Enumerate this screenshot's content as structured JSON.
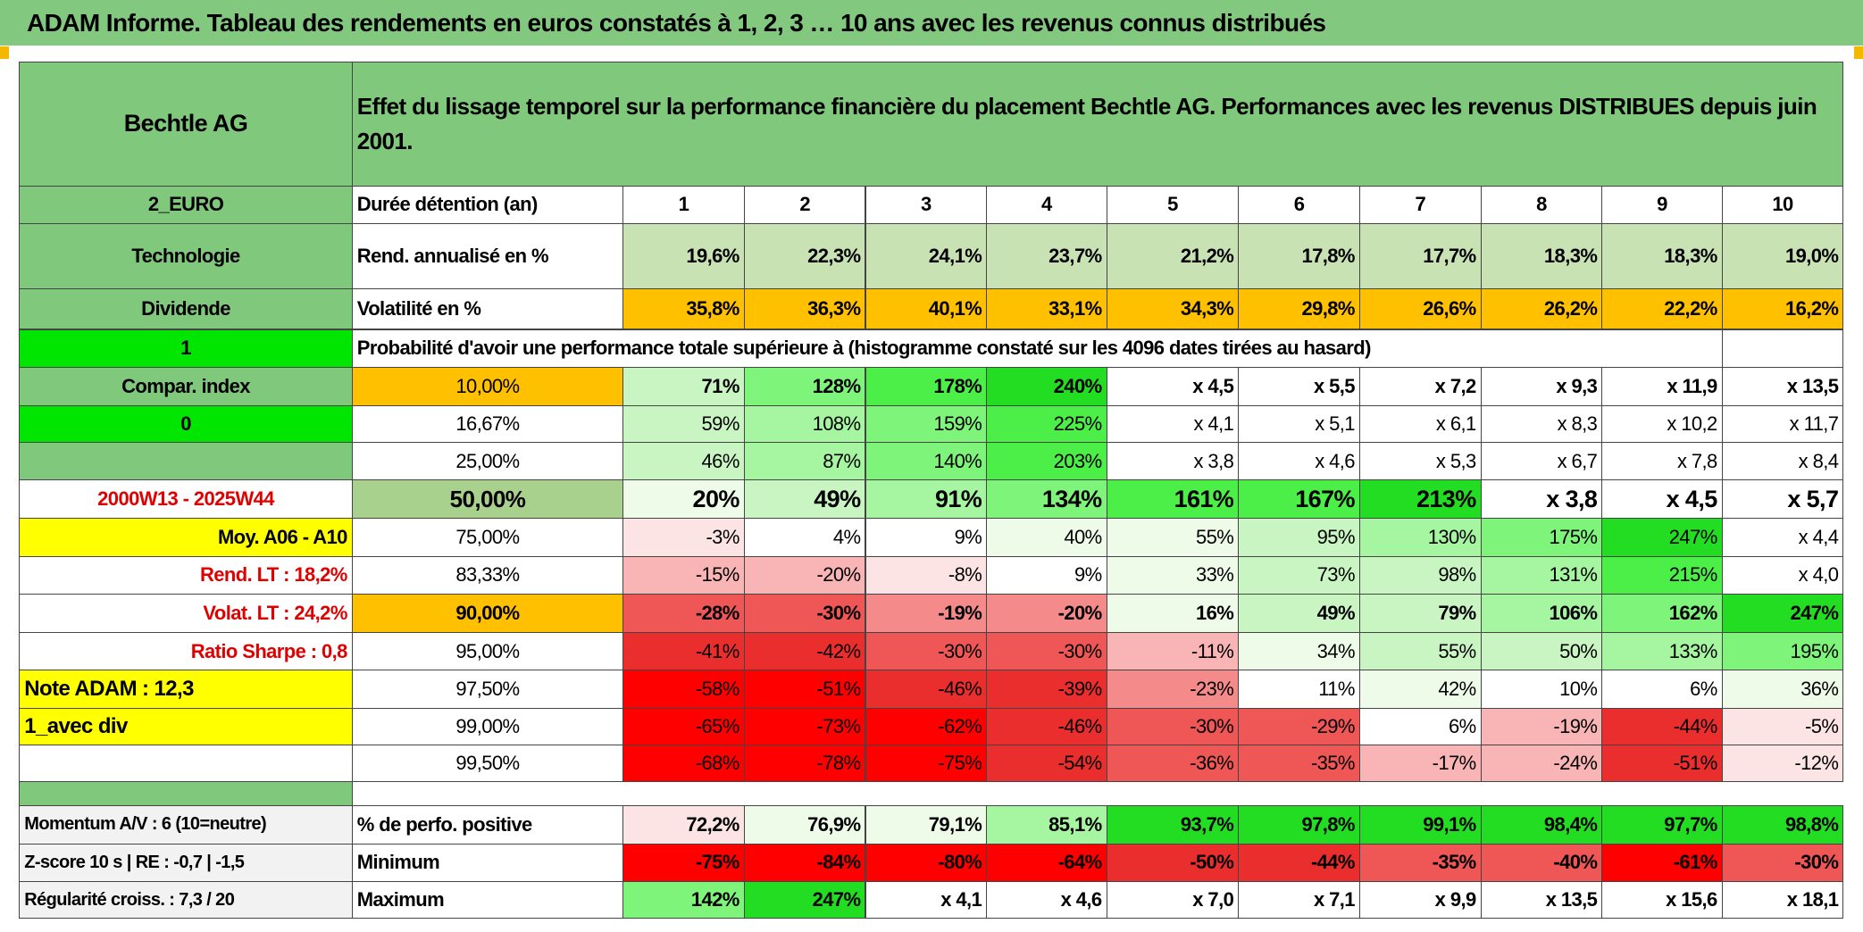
{
  "title": "ADAM Informe. Tableau des rendements en euros constatés à 1, 2, 3 … 10 ans avec les revenus connus distribués",
  "header": {
    "name": "Bechtle AG",
    "description": "Effet du lissage temporel sur la performance financière du placement Bechtle AG. Performances avec les revenus DISTRIBUES depuis juin 2001."
  },
  "rows": [
    {
      "label": "2_EURO",
      "name": "Durée détention (an)",
      "values": [
        1,
        2,
        3,
        4,
        5,
        6,
        7,
        8,
        9,
        10
      ]
    },
    {
      "label": "Technologie",
      "name": "Rend. annualisé en %",
      "values": [
        "19,6%",
        "22,3%",
        "24,1%",
        "23,7%",
        "21,2%",
        "17,8%",
        "17,7%",
        "18,3%",
        "18,3%",
        "19,0%"
      ]
    },
    {
      "label": "Dividende",
      "name": "Volatilité en %",
      "values": [
        "35,8%",
        "36,3%",
        "40,1%",
        "33,1%",
        "34,3%",
        "29,8%",
        "26,6%",
        "26,2%",
        "22,2%",
        "16,2%"
      ]
    },
    {
      "label": "1",
      "note": "Probabilité d'avoir une performance totale supérieure à (histogramme constaté sur les 4096 dates tirées au hasard)"
    },
    {
      "label": "Compar. index",
      "name": "10,00%",
      "values": [
        "71%",
        "128%",
        "178%",
        "240%",
        "x 4,5",
        "x 5,5",
        "x 7,2",
        "x 9,3",
        "x 11,9",
        "x 13,5"
      ]
    },
    {
      "label": "0",
      "name": "16,67%",
      "values": [
        "59%",
        "108%",
        "159%",
        "225%",
        "x 4,1",
        "x 5,1",
        "x 6,1",
        "x 8,3",
        "x 10,2",
        "x 11,7"
      ]
    },
    {
      "name": "25,00%",
      "values": [
        "46%",
        "87%",
        "140%",
        "203%",
        "x 3,8",
        "x 4,6",
        "x 5,3",
        "x 6,7",
        "x 7,8",
        "x 8,4"
      ]
    },
    {
      "label": "2000W13 - 2025W44",
      "name": "50,00%",
      "values": [
        "20%",
        "49%",
        "91%",
        "134%",
        "161%",
        "167%",
        "213%",
        "x 3,8",
        "x 4,5",
        "x 5,7"
      ]
    },
    {
      "label": "Moy. A06 - A10",
      "name": "75,00%",
      "values": [
        "-3%",
        "4%",
        "9%",
        "40%",
        "55%",
        "95%",
        "130%",
        "175%",
        "247%",
        "x 4,4"
      ]
    },
    {
      "label": "Rend. LT :    18,2%",
      "name": "83,33%",
      "values": [
        "-15%",
        "-20%",
        "-8%",
        "9%",
        "33%",
        "73%",
        "98%",
        "131%",
        "215%",
        "x 4,0"
      ]
    },
    {
      "label": "Volat. LT :    24,2%",
      "name": "90,00%",
      "values": [
        "-28%",
        "-30%",
        "-19%",
        "-20%",
        "16%",
        "49%",
        "79%",
        "106%",
        "162%",
        "247%"
      ]
    },
    {
      "label": "Ratio Sharpe :    0,8",
      "name": "95,00%",
      "values": [
        "-41%",
        "-42%",
        "-30%",
        "-30%",
        "-11%",
        "34%",
        "55%",
        "50%",
        "133%",
        "195%"
      ]
    },
    {
      "label": "Note ADAM : 12,3",
      "name": "97,50%",
      "values": [
        "-58%",
        "-51%",
        "-46%",
        "-39%",
        "-23%",
        "11%",
        "42%",
        "10%",
        "6%",
        "36%"
      ]
    },
    {
      "label": "1_avec div",
      "name": "99,00%",
      "values": [
        "-65%",
        "-73%",
        "-62%",
        "-46%",
        "-30%",
        "-29%",
        "6%",
        "-19%",
        "-44%",
        "-5%"
      ]
    },
    {
      "name": "99,50%",
      "values": [
        "-68%",
        "-78%",
        "-75%",
        "-54%",
        "-36%",
        "-35%",
        "-17%",
        "-24%",
        "-51%",
        "-12%"
      ]
    },
    {
      "label": "Momentum A/V : 6 (10=neutre)",
      "name": "% de perfo. positive",
      "values": [
        "72,2%",
        "76,9%",
        "79,1%",
        "85,1%",
        "93,7%",
        "97,8%",
        "99,1%",
        "98,4%",
        "97,7%",
        "98,8%"
      ]
    },
    {
      "label": "Z-score 10 s | RE : -0,7 | -1,5",
      "name": "Minimum",
      "values": [
        "-75%",
        "-84%",
        "-80%",
        "-64%",
        "-50%",
        "-44%",
        "-35%",
        "-40%",
        "-61%",
        "-30%"
      ]
    },
    {
      "label": "Régularité croiss. : 7,3 / 20",
      "name": "Maximum",
      "values": [
        "142%",
        "247%",
        "x 4,1",
        "x 4,6",
        "x 7,0",
        "x 7,1",
        "x 9,9",
        "x 13,5",
        "x 15,6",
        "x 18,1"
      ]
    }
  ]
}
